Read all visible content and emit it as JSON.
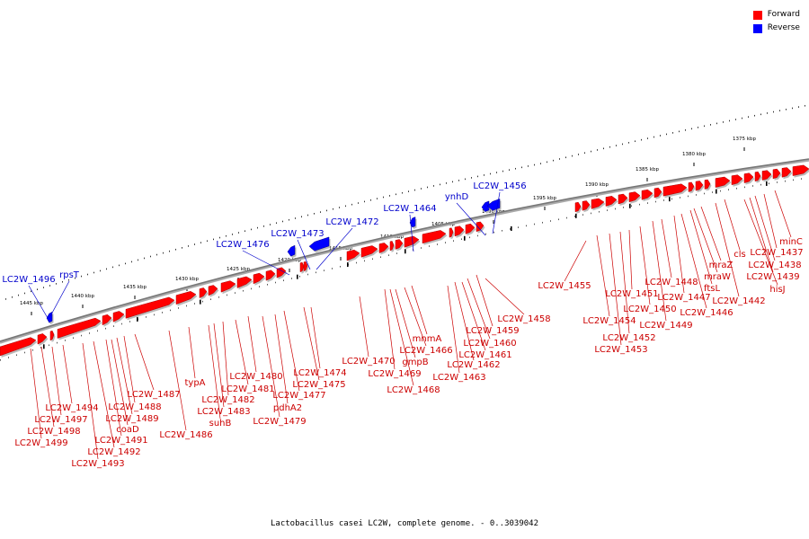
{
  "legend": {
    "forward_label": "Forward",
    "reverse_label": "Reverse",
    "forward_color": "#ff0000",
    "reverse_color": "#0000ff"
  },
  "colors": {
    "forward_label": "#cc0000",
    "reverse_label": "#0000cc",
    "backbone": "#777777"
  },
  "caption": "Lactobacillus casei LC2W, complete genome. - 0..3039042",
  "ticks": [
    "1375 kbp",
    "1380 kbp",
    "1385 kbp",
    "1390 kbp",
    "1395 kbp",
    "1400 kbp",
    "1405 kbp",
    "1410 kbp",
    "1415 kbp",
    "1420 kbp",
    "1425 kbp",
    "1430 kbp",
    "1435 kbp",
    "1440 kbp",
    "1445 kbp"
  ],
  "reverse_genes": [
    "LC2W_1456",
    "ynhD",
    "LC2W_1464",
    "LC2W_1472",
    "LC2W_1473",
    "LC2W_1476",
    "rpsT",
    "LC2W_1496"
  ],
  "forward_genes": [
    "minC",
    "LC2W_1437",
    "LC2W_1438",
    "LC2W_1439",
    "hisJ",
    "cls",
    "LC2W_1442",
    "mraZ",
    "mraW",
    "ftsL",
    "LC2W_1446",
    "LC2W_1447",
    "LC2W_1448",
    "LC2W_1449",
    "LC2W_1450",
    "LC2W_1451",
    "LC2W_1452",
    "LC2W_1453",
    "LC2W_1454",
    "LC2W_1455",
    "LC2W_1458",
    "LC2W_1459",
    "LC2W_1460",
    "LC2W_1461",
    "LC2W_1462",
    "LC2W_1463",
    "mnmA",
    "LC2W_1466",
    "gmpB",
    "LC2W_1468",
    "LC2W_1469",
    "LC2W_1470",
    "LC2W_1474",
    "LC2W_1475",
    "LC2W_1477",
    "pdhA2",
    "LC2W_1479",
    "LC2W_1480",
    "LC2W_1481",
    "LC2W_1482",
    "LC2W_1483",
    "suhB",
    "typA",
    "LC2W_1486",
    "LC2W_1487",
    "LC2W_1488",
    "LC2W_1489",
    "coaD",
    "LC2W_1491",
    "LC2W_1492",
    "LC2W_1493",
    "LC2W_1494",
    "LC2W_1497",
    "LC2W_1498",
    "LC2W_1499"
  ]
}
